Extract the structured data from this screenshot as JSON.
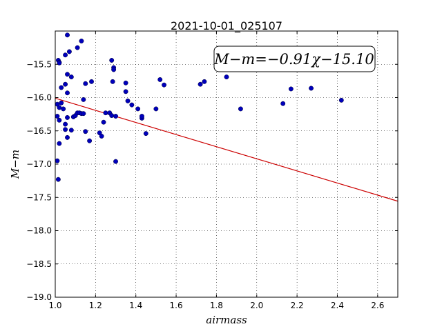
{
  "chart_data": {
    "type": "scatter",
    "title": "2021-10-01_025107",
    "xlabel": "airmass",
    "ylabel": "M−m",
    "xlim": [
      1.0,
      2.7
    ],
    "ylim": [
      -19.0,
      -15.0
    ],
    "xticks": [
      "1.0",
      "1.2",
      "1.4",
      "1.6",
      "1.8",
      "2.0",
      "2.2",
      "2.4",
      "2.6"
    ],
    "yticks": [
      "−15.5",
      "−16.0",
      "−16.5",
      "−17.0",
      "−17.5",
      "−18.0",
      "−18.5",
      "−19.0"
    ],
    "grid": true,
    "annotation": "M−m=−0.91χ−15.10",
    "fit_line": {
      "slope": -0.91,
      "intercept": -15.1,
      "color": "#cc0000"
    },
    "point_color": "#0000bb",
    "points": [
      [
        1.01,
        -16.1
      ],
      [
        1.01,
        -16.28
      ],
      [
        1.01,
        -16.95
      ],
      [
        1.015,
        -17.23
      ],
      [
        1.015,
        -15.44
      ],
      [
        1.02,
        -15.47
      ],
      [
        1.02,
        -15.48
      ],
      [
        1.02,
        -16.15
      ],
      [
        1.02,
        -16.34
      ],
      [
        1.02,
        -16.69
      ],
      [
        1.03,
        -16.08
      ],
      [
        1.03,
        -15.85
      ],
      [
        1.04,
        -16.17
      ],
      [
        1.05,
        -15.36
      ],
      [
        1.05,
        -15.8
      ],
      [
        1.05,
        -16.4
      ],
      [
        1.05,
        -16.48
      ],
      [
        1.06,
        -15.06
      ],
      [
        1.06,
        -15.65
      ],
      [
        1.06,
        -15.93
      ],
      [
        1.06,
        -16.3
      ],
      [
        1.06,
        -16.6
      ],
      [
        1.07,
        -15.31
      ],
      [
        1.08,
        -15.69
      ],
      [
        1.08,
        -16.49
      ],
      [
        1.09,
        -16.29
      ],
      [
        1.1,
        -16.27
      ],
      [
        1.11,
        -16.23
      ],
      [
        1.11,
        -15.25
      ],
      [
        1.12,
        -16.23
      ],
      [
        1.13,
        -16.24
      ],
      [
        1.13,
        -15.15
      ],
      [
        1.14,
        -16.24
      ],
      [
        1.14,
        -16.03
      ],
      [
        1.15,
        -15.79
      ],
      [
        1.15,
        -16.51
      ],
      [
        1.17,
        -16.65
      ],
      [
        1.18,
        -15.76
      ],
      [
        1.22,
        -16.53
      ],
      [
        1.23,
        -16.58
      ],
      [
        1.24,
        -16.37
      ],
      [
        1.25,
        -16.23
      ],
      [
        1.27,
        -16.23
      ],
      [
        1.28,
        -16.27
      ],
      [
        1.28,
        -15.44
      ],
      [
        1.285,
        -15.76
      ],
      [
        1.29,
        -15.55
      ],
      [
        1.29,
        -15.58
      ],
      [
        1.3,
        -16.28
      ],
      [
        1.3,
        -16.96
      ],
      [
        1.35,
        -15.78
      ],
      [
        1.35,
        -15.91
      ],
      [
        1.36,
        -16.05
      ],
      [
        1.38,
        -16.11
      ],
      [
        1.41,
        -16.17
      ],
      [
        1.43,
        -16.31
      ],
      [
        1.43,
        -16.28
      ],
      [
        1.45,
        -16.54
      ],
      [
        1.5,
        -16.17
      ],
      [
        1.52,
        -15.73
      ],
      [
        1.54,
        -15.81
      ],
      [
        1.72,
        -15.8
      ],
      [
        1.74,
        -15.76
      ],
      [
        1.85,
        -15.69
      ],
      [
        1.92,
        -16.17
      ],
      [
        2.13,
        -16.09
      ],
      [
        2.17,
        -15.87
      ],
      [
        2.27,
        -15.86
      ],
      [
        2.42,
        -16.04
      ]
    ]
  }
}
